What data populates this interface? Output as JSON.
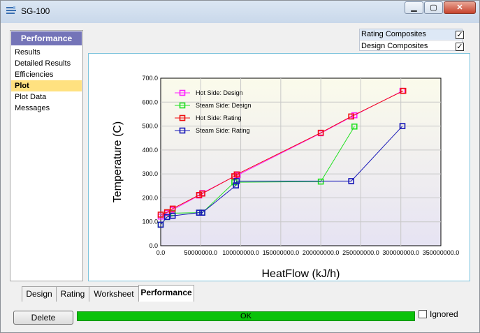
{
  "window": {
    "title": "SG-100"
  },
  "nav": {
    "header": "Performance",
    "items": [
      "Results",
      "Detailed Results",
      "Efficiencies",
      "Plot",
      "Plot Data",
      "Messages"
    ],
    "selected_index": 3
  },
  "composites": [
    {
      "label": "Rating Composites",
      "checked": true,
      "check_glyph": "✓"
    },
    {
      "label": "Design Composites",
      "checked": true,
      "check_glyph": "✓"
    }
  ],
  "tabs": [
    "Design",
    "Rating",
    "Worksheet",
    "Performance"
  ],
  "active_tab": "Performance",
  "footer": {
    "delete_label": "Delete",
    "status_text": "OK",
    "ignored_label": "Ignored"
  },
  "chart_data": {
    "type": "line",
    "xlabel": "HeatFlow (kJ/h)",
    "ylabel": "Temperature (C)",
    "xlim": [
      0,
      350000000
    ],
    "ylim": [
      0,
      700
    ],
    "x_ticks": [
      "0.0",
      "50000000.0",
      "100000000.0",
      "150000000.0",
      "200000000.0",
      "250000000.0",
      "300000000.0",
      "350000000.0"
    ],
    "y_ticks": [
      "0.0",
      "100.0",
      "200.0",
      "300.0",
      "400.0",
      "500.0",
      "600.0",
      "700.0"
    ],
    "legend_position": "top-left",
    "grid": true,
    "series": [
      {
        "name": "Hot Side: Design",
        "color": "#ff20ff",
        "points": [
          [
            0,
            122
          ],
          [
            8000000,
            137
          ],
          [
            15000000,
            150
          ],
          [
            48000000,
            210
          ],
          [
            52000000,
            220
          ],
          [
            92000000,
            290
          ],
          [
            96000000,
            295
          ],
          [
            200000000,
            470
          ],
          [
            242000000,
            545
          ],
          [
            302000000,
            647
          ]
        ]
      },
      {
        "name": "Steam Side: Design",
        "color": "#20e020",
        "points": [
          [
            0,
            88
          ],
          [
            8000000,
            120
          ],
          [
            15000000,
            136
          ],
          [
            48000000,
            138
          ],
          [
            52000000,
            138
          ],
          [
            92000000,
            265
          ],
          [
            200000000,
            268
          ],
          [
            242000000,
            498
          ]
        ]
      },
      {
        "name": "Hot Side: Rating",
        "color": "#ee1010",
        "points": [
          [
            0,
            130
          ],
          [
            8000000,
            140
          ],
          [
            15000000,
            155
          ],
          [
            48000000,
            212
          ],
          [
            52000000,
            218
          ],
          [
            92000000,
            290
          ],
          [
            95000000,
            298
          ],
          [
            200000000,
            472
          ],
          [
            238000000,
            540
          ],
          [
            303000000,
            647
          ]
        ]
      },
      {
        "name": "Steam Side: Rating",
        "color": "#1818b8",
        "points": [
          [
            0,
            88
          ],
          [
            8000000,
            120
          ],
          [
            15000000,
            125
          ],
          [
            48000000,
            138
          ],
          [
            52000000,
            138
          ],
          [
            94000000,
            252
          ],
          [
            95000000,
            270
          ],
          [
            238000000,
            270
          ],
          [
            302000000,
            500
          ]
        ]
      }
    ]
  }
}
